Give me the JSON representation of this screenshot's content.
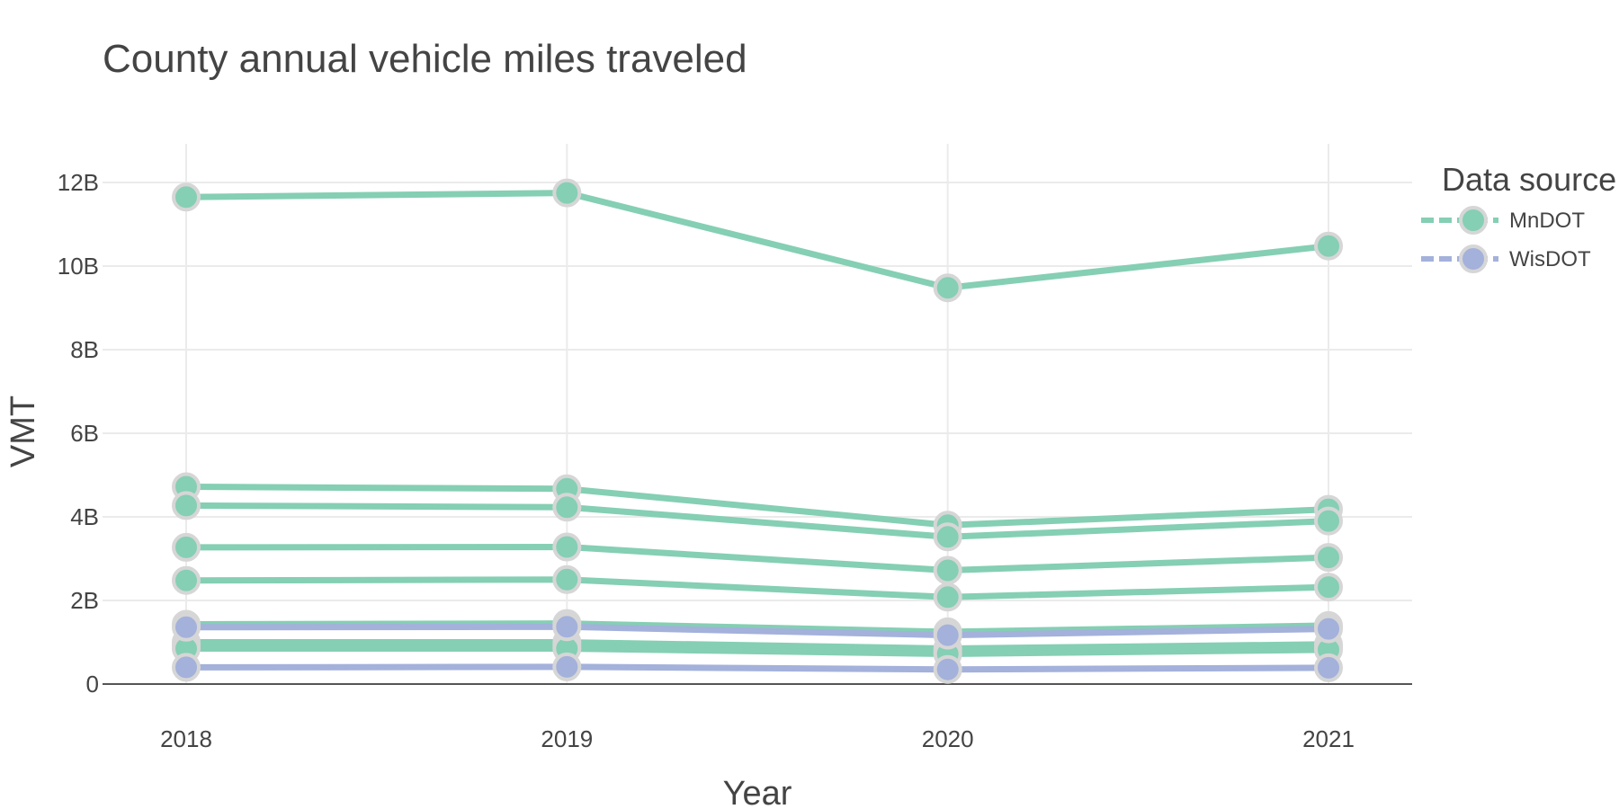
{
  "chart_data": {
    "type": "line",
    "title": "County annual vehicle miles traveled",
    "xlabel": "Year",
    "ylabel": "VMT",
    "x": [
      2018,
      2019,
      2020,
      2021
    ],
    "x_tick_labels": [
      "2018",
      "2019",
      "2020",
      "2021"
    ],
    "ylim": [
      0,
      12.5
    ],
    "y_unit": "billions",
    "y_ticks": [
      0,
      2,
      4,
      6,
      8,
      10,
      12
    ],
    "y_tick_labels": [
      "0",
      "2B",
      "4B",
      "6B",
      "8B",
      "10B",
      "12B"
    ],
    "grid": true,
    "legend": {
      "title": "Data source",
      "position": "top-right",
      "entries": [
        {
          "label": "MnDOT",
          "color": "#85CFB4"
        },
        {
          "label": "WisDOT",
          "color": "#A3B1DB"
        }
      ]
    },
    "marker_outline": "#D6D6D6",
    "series": [
      {
        "source": "MnDOT",
        "values": [
          11.65,
          11.75,
          9.48,
          10.48
        ]
      },
      {
        "source": "MnDOT",
        "values": [
          4.72,
          4.67,
          3.8,
          4.18
        ]
      },
      {
        "source": "MnDOT",
        "values": [
          4.27,
          4.23,
          3.52,
          3.9
        ]
      },
      {
        "source": "MnDOT",
        "values": [
          3.27,
          3.28,
          2.72,
          3.03
        ]
      },
      {
        "source": "MnDOT",
        "values": [
          2.48,
          2.5,
          2.08,
          2.32
        ]
      },
      {
        "source": "MnDOT",
        "values": [
          1.43,
          1.45,
          1.25,
          1.4
        ]
      },
      {
        "source": "MnDOT",
        "values": [
          1.0,
          1.0,
          0.85,
          0.95
        ]
      },
      {
        "source": "MnDOT",
        "values": [
          0.92,
          0.92,
          0.78,
          0.88
        ]
      },
      {
        "source": "MnDOT",
        "values": [
          0.85,
          0.85,
          0.72,
          0.82
        ]
      },
      {
        "source": "WisDOT",
        "values": [
          1.36,
          1.37,
          1.17,
          1.32
        ]
      },
      {
        "source": "WisDOT",
        "values": [
          0.4,
          0.41,
          0.35,
          0.39
        ]
      }
    ]
  }
}
